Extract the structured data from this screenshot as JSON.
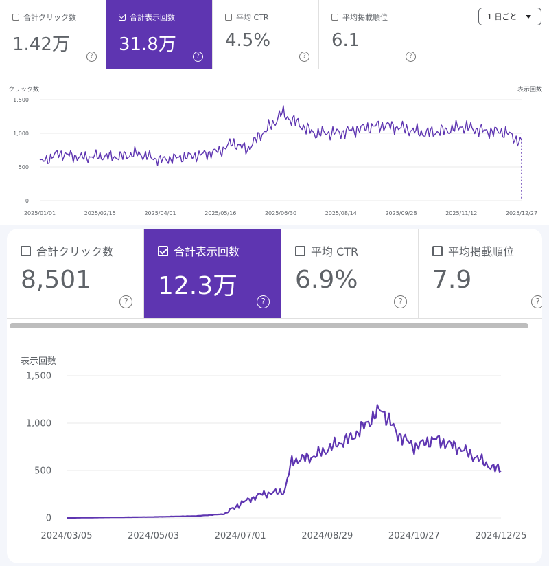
{
  "top": {
    "metrics": [
      {
        "label": "合計クリック数",
        "value": "1.42万",
        "selected": false
      },
      {
        "label": "合計表示回数",
        "value": "31.8万",
        "selected": true
      },
      {
        "label": "平均 CTR",
        "value": "4.5%",
        "selected": false
      },
      {
        "label": "平均掲載順位",
        "value": "6.1",
        "selected": false
      }
    ],
    "help_glyph": "?",
    "period_label": "1 日ごと"
  },
  "colors": {
    "accent": "#5e35b1",
    "line": "#5e35b1"
  },
  "chart_data": [
    {
      "type": "line",
      "title": "",
      "ylabel_left": "クリック数",
      "ylabel_right": "表示回数",
      "ylim": [
        0,
        1500
      ],
      "yticks": [
        "0",
        "500",
        "1,000",
        "1,500"
      ],
      "x_ticks": [
        "2025/01/01",
        "2025/02/15",
        "2025/04/01",
        "2025/05/16",
        "2025/06/30",
        "2025/08/14",
        "2025/09/28",
        "2025/11/12",
        "2025/12/27"
      ],
      "x": [
        "2025/01/01",
        "2025/01/15",
        "2025/02/01",
        "2025/02/15",
        "2025/03/01",
        "2025/03/15",
        "2025/04/01",
        "2025/04/15",
        "2025/05/01",
        "2025/05/16",
        "2025/05/25",
        "2025/06/05",
        "2025/06/15",
        "2025/06/25",
        "2025/06/30",
        "2025/07/10",
        "2025/07/25",
        "2025/08/14",
        "2025/09/01",
        "2025/09/15",
        "2025/09/28",
        "2025/10/15",
        "2025/11/01",
        "2025/11/12",
        "2025/11/30",
        "2025/12/15",
        "2025/12/22",
        "2025/12/27"
      ],
      "values": [
        560,
        700,
        640,
        660,
        650,
        700,
        600,
        640,
        680,
        740,
        860,
        760,
        980,
        1150,
        1300,
        1180,
        1000,
        1010,
        1080,
        1120,
        1080,
        1000,
        1040,
        1100,
        1030,
        1020,
        920,
        870
      ],
      "grid": true
    },
    {
      "type": "line",
      "title": "",
      "ylabel": "表示回数",
      "ylim": [
        0,
        1500
      ],
      "yticks": [
        "0",
        "500",
        "1,000",
        "1,500"
      ],
      "x_ticks": [
        "2024/03/05",
        "2024/05/03",
        "2024/07/01",
        "2024/08/29",
        "2024/10/27",
        "2024/12/25"
      ],
      "x": [
        "2024/03/05",
        "2024/04/01",
        "2024/05/03",
        "2024/06/01",
        "2024/06/20",
        "2024/07/01",
        "2024/07/15",
        "2024/07/31",
        "2024/08/05",
        "2024/08/20",
        "2024/09/05",
        "2024/09/15",
        "2024/09/25",
        "2024/10/05",
        "2024/10/15",
        "2024/10/27",
        "2024/11/10",
        "2024/11/25",
        "2024/12/10",
        "2024/12/20",
        "2024/12/25"
      ],
      "values": [
        0,
        5,
        10,
        20,
        40,
        150,
        250,
        280,
        600,
        650,
        780,
        850,
        1000,
        1150,
        900,
        750,
        830,
        750,
        620,
        520,
        520
      ],
      "grid": true
    }
  ],
  "bottom": {
    "metrics": [
      {
        "label": "合計クリック数",
        "value": "8,501",
        "selected": false
      },
      {
        "label": "合計表示回数",
        "value": "12.3万",
        "selected": true
      },
      {
        "label": "平均 CTR",
        "value": "6.9%",
        "selected": false
      },
      {
        "label": "平均掲載順位",
        "value": "7.9",
        "selected": false
      }
    ]
  }
}
